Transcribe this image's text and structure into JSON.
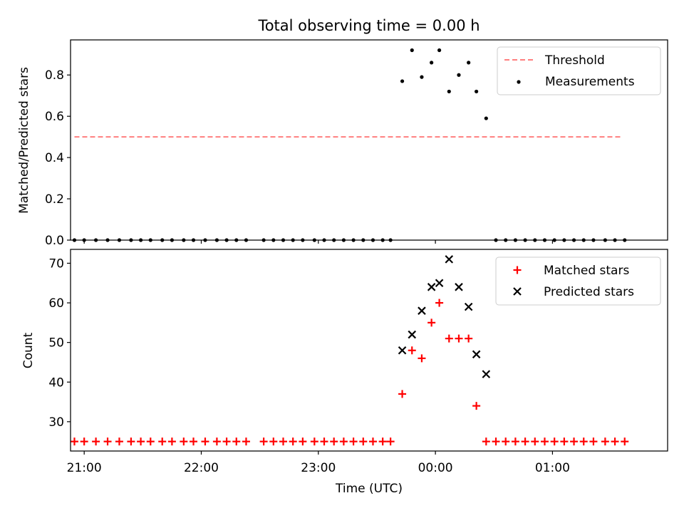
{
  "figure": {
    "title": "Total observing time = 0.00 h",
    "colors": {
      "threshold": "#ff7f7f",
      "measurements": "#000000",
      "matched": "#ff0000",
      "predicted": "#000000"
    }
  },
  "chart_data": [
    {
      "type": "scatter",
      "panel": "top",
      "title": "Total observing time = 0.00 h",
      "xlabel": "",
      "ylabel": "Matched/Predicted stars",
      "xlim": [
        "20:53",
        "01:59"
      ],
      "ylim": [
        0,
        0.97
      ],
      "y_ticks": [
        0.0,
        0.2,
        0.4,
        0.6,
        0.8
      ],
      "y_tick_labels": [
        "0.0",
        "0.2",
        "0.4",
        "0.6",
        "0.8"
      ],
      "legend": {
        "position": "top-right",
        "entries": [
          "Threshold",
          "Measurements"
        ]
      },
      "series": [
        {
          "name": "Threshold",
          "kind": "dashed-line",
          "color": "#ff7f7f",
          "x": [
            "20:55",
            "01:35"
          ],
          "y": [
            0.5,
            0.5
          ]
        },
        {
          "name": "Measurements",
          "kind": "dots",
          "color": "#000000",
          "points": [
            [
              "20:55",
              0
            ],
            [
              "21:00",
              0
            ],
            [
              "21:06",
              0
            ],
            [
              "21:12",
              0
            ],
            [
              "21:18",
              0
            ],
            [
              "21:24",
              0
            ],
            [
              "21:29",
              0
            ],
            [
              "21:34",
              0
            ],
            [
              "21:40",
              0
            ],
            [
              "21:45",
              0
            ],
            [
              "21:51",
              0
            ],
            [
              "21:56",
              0
            ],
            [
              "22:02",
              0
            ],
            [
              "22:08",
              0
            ],
            [
              "22:13",
              0
            ],
            [
              "22:18",
              0
            ],
            [
              "22:23",
              0
            ],
            [
              "22:32",
              0
            ],
            [
              "22:37",
              0
            ],
            [
              "22:42",
              0
            ],
            [
              "22:47",
              0
            ],
            [
              "22:52",
              0
            ],
            [
              "22:58",
              0
            ],
            [
              "23:03",
              0
            ],
            [
              "23:08",
              0
            ],
            [
              "23:13",
              0
            ],
            [
              "23:18",
              0
            ],
            [
              "23:23",
              0
            ],
            [
              "23:28",
              0
            ],
            [
              "23:33",
              0
            ],
            [
              "23:37",
              0
            ],
            [
              "23:43",
              0.77
            ],
            [
              "23:48",
              0.92
            ],
            [
              "23:53",
              0.79
            ],
            [
              "23:58",
              0.86
            ],
            [
              "00:02",
              0.92
            ],
            [
              "00:07",
              0.72
            ],
            [
              "00:12",
              0.8
            ],
            [
              "00:17",
              0.86
            ],
            [
              "00:21",
              0.72
            ],
            [
              "00:26",
              0.59
            ],
            [
              "00:31",
              0
            ],
            [
              "00:36",
              0
            ],
            [
              "00:41",
              0
            ],
            [
              "00:46",
              0
            ],
            [
              "00:51",
              0
            ],
            [
              "00:56",
              0
            ],
            [
              "01:01",
              0
            ],
            [
              "01:06",
              0
            ],
            [
              "01:11",
              0
            ],
            [
              "01:16",
              0
            ],
            [
              "01:21",
              0
            ],
            [
              "01:27",
              0
            ],
            [
              "01:32",
              0
            ],
            [
              "01:37",
              0
            ]
          ]
        }
      ]
    },
    {
      "type": "scatter",
      "panel": "bottom",
      "xlabel": "Time (UTC)",
      "ylabel": "Count",
      "xlim": [
        "20:53",
        "01:59"
      ],
      "ylim": [
        22.6,
        73.5
      ],
      "y_ticks": [
        30,
        40,
        50,
        60,
        70
      ],
      "y_tick_labels": [
        "30",
        "40",
        "50",
        "60",
        "70"
      ],
      "x_ticks": [
        "21:00",
        "22:00",
        "23:00",
        "00:00",
        "01:00"
      ],
      "x_tick_labels": [
        "21:00",
        "22:00",
        "23:00",
        "00:00",
        "01:00"
      ],
      "legend": {
        "position": "top-right",
        "entries": [
          "Matched stars",
          "Predicted stars"
        ]
      },
      "series": [
        {
          "name": "Matched stars",
          "marker": "plus",
          "color": "#ff0000",
          "points": [
            [
              "20:55",
              25
            ],
            [
              "21:00",
              25
            ],
            [
              "21:06",
              25
            ],
            [
              "21:12",
              25
            ],
            [
              "21:18",
              25
            ],
            [
              "21:24",
              25
            ],
            [
              "21:29",
              25
            ],
            [
              "21:34",
              25
            ],
            [
              "21:40",
              25
            ],
            [
              "21:45",
              25
            ],
            [
              "21:51",
              25
            ],
            [
              "21:56",
              25
            ],
            [
              "22:02",
              25
            ],
            [
              "22:08",
              25
            ],
            [
              "22:13",
              25
            ],
            [
              "22:18",
              25
            ],
            [
              "22:23",
              25
            ],
            [
              "22:32",
              25
            ],
            [
              "22:37",
              25
            ],
            [
              "22:42",
              25
            ],
            [
              "22:47",
              25
            ],
            [
              "22:52",
              25
            ],
            [
              "22:58",
              25
            ],
            [
              "23:03",
              25
            ],
            [
              "23:08",
              25
            ],
            [
              "23:13",
              25
            ],
            [
              "23:18",
              25
            ],
            [
              "23:23",
              25
            ],
            [
              "23:28",
              25
            ],
            [
              "23:33",
              25
            ],
            [
              "23:37",
              25
            ],
            [
              "23:43",
              37
            ],
            [
              "23:48",
              48
            ],
            [
              "23:53",
              46
            ],
            [
              "23:58",
              55
            ],
            [
              "00:02",
              60
            ],
            [
              "00:07",
              51
            ],
            [
              "00:12",
              51
            ],
            [
              "00:17",
              51
            ],
            [
              "00:21",
              34
            ],
            [
              "00:26",
              25
            ],
            [
              "00:31",
              25
            ],
            [
              "00:36",
              25
            ],
            [
              "00:41",
              25
            ],
            [
              "00:46",
              25
            ],
            [
              "00:51",
              25
            ],
            [
              "00:56",
              25
            ],
            [
              "01:01",
              25
            ],
            [
              "01:06",
              25
            ],
            [
              "01:11",
              25
            ],
            [
              "01:16",
              25
            ],
            [
              "01:21",
              25
            ],
            [
              "01:27",
              25
            ],
            [
              "01:32",
              25
            ],
            [
              "01:37",
              25
            ]
          ]
        },
        {
          "name": "Predicted stars",
          "marker": "x",
          "color": "#000000",
          "points": [
            [
              "23:43",
              48
            ],
            [
              "23:48",
              52
            ],
            [
              "23:53",
              58
            ],
            [
              "23:58",
              64
            ],
            [
              "00:02",
              65
            ],
            [
              "00:07",
              71
            ],
            [
              "00:12",
              64
            ],
            [
              "00:17",
              59
            ],
            [
              "00:21",
              47
            ],
            [
              "00:26",
              42
            ]
          ]
        }
      ]
    }
  ]
}
